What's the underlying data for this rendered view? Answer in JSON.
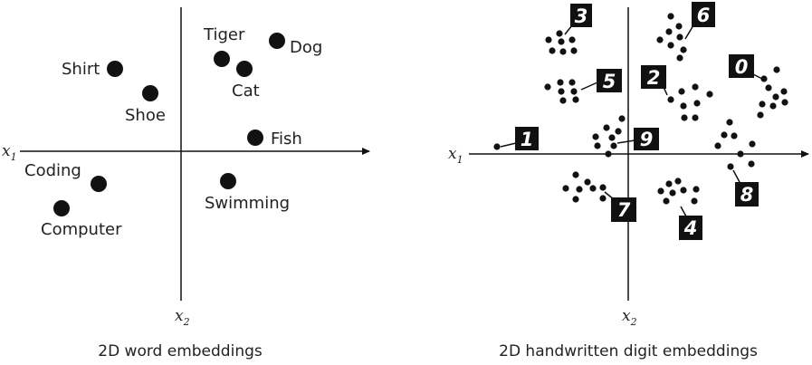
{
  "word_panel": {
    "caption": "2D word embeddings",
    "x_axis_label": "x",
    "x_axis_sub": "1",
    "y_axis_label": "x",
    "y_axis_sub": "2",
    "words": [
      {
        "label": "Shirt"
      },
      {
        "label": "Shoe"
      },
      {
        "label": "Tiger"
      },
      {
        "label": "Cat"
      },
      {
        "label": "Dog"
      },
      {
        "label": "Fish"
      },
      {
        "label": "Coding"
      },
      {
        "label": "Computer"
      },
      {
        "label": "Swimming"
      }
    ]
  },
  "digit_panel": {
    "caption": "2D handwritten digit embeddings",
    "x_axis_label": "x",
    "x_axis_sub": "1",
    "y_axis_label": "x",
    "y_axis_sub": "2",
    "digits": [
      {
        "label": "3"
      },
      {
        "label": "6"
      },
      {
        "label": "5"
      },
      {
        "label": "2"
      },
      {
        "label": "0"
      },
      {
        "label": "1"
      },
      {
        "label": "9"
      },
      {
        "label": "8"
      },
      {
        "label": "7"
      },
      {
        "label": "4"
      }
    ]
  },
  "colors": {
    "ink": "#111111",
    "tag_bg": "#111111",
    "tag_text": "#ffffff"
  }
}
